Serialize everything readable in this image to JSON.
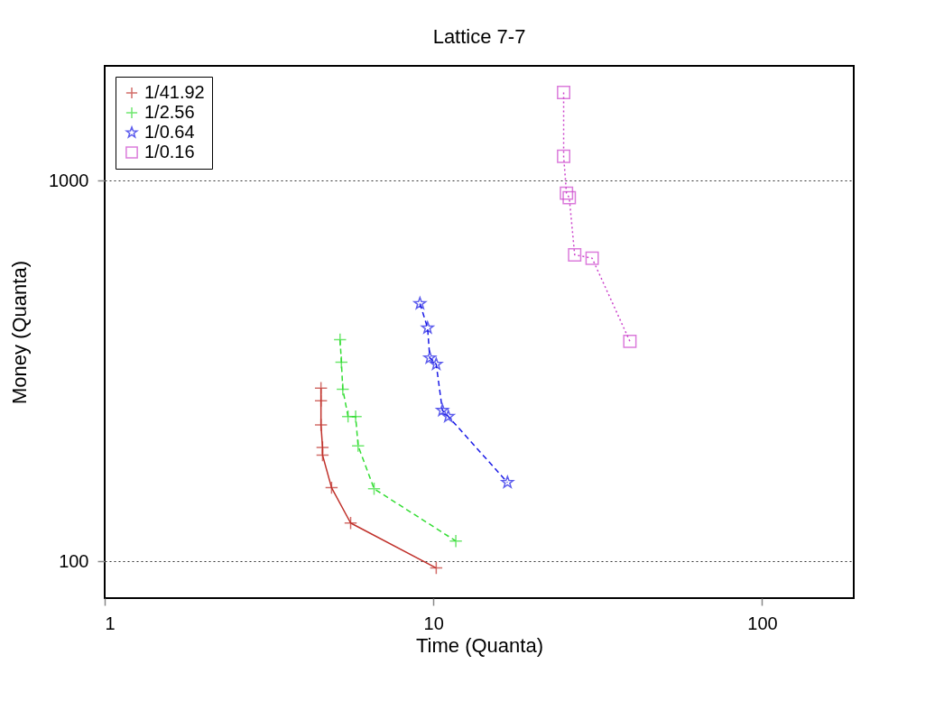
{
  "chart_data": {
    "type": "line",
    "title": "Lattice 7-7",
    "xlabel": "Time (Quanta)",
    "ylabel": "Money (Quanta)",
    "log": "xy",
    "xlim": [
      1,
      190
    ],
    "ylim": [
      80,
      2000
    ],
    "xticks": [
      1,
      10,
      100
    ],
    "yticks": [
      100,
      1000
    ],
    "grid": "y",
    "legend": "top left",
    "series": [
      {
        "name": "1/41.92",
        "color": "#c0302a",
        "marker": "cross",
        "line_style": "solid",
        "x": [
          4.55,
          4.55,
          4.55,
          4.6,
          4.6,
          4.9,
          5.6,
          10.2
        ],
        "values": [
          285,
          264,
          228,
          199,
          190,
          156,
          126,
          96
        ]
      },
      {
        "name": "1/2.56",
        "color": "#33dd33",
        "marker": "cross",
        "line_style": "dashed",
        "x": [
          5.2,
          5.25,
          5.3,
          5.5,
          5.8,
          5.9,
          6.6,
          11.7
        ],
        "values": [
          382,
          333,
          283,
          240,
          240,
          201,
          155,
          113
        ]
      },
      {
        "name": "1/0.64",
        "color": "#1a1ae6",
        "marker": "star",
        "line_style": "dashed",
        "x": [
          9.1,
          9.6,
          9.75,
          10.2,
          10.65,
          11.1,
          16.8
        ],
        "values": [
          475,
          410,
          342,
          329,
          249,
          240,
          161
        ]
      },
      {
        "name": "1/0.16",
        "color": "#cc44cc",
        "marker": "square",
        "line_style": "dotted",
        "x": [
          24.9,
          24.9,
          25.4,
          25.9,
          26.9,
          30.4,
          39.6
        ],
        "values": [
          1703,
          1157,
          926,
          901,
          638,
          625,
          378
        ]
      }
    ]
  }
}
